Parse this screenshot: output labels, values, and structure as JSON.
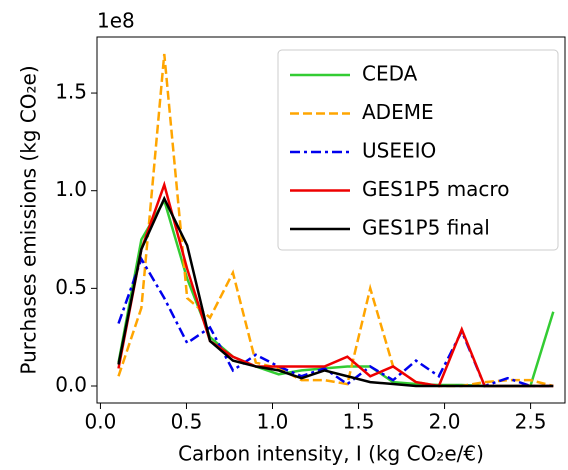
{
  "chart_data": {
    "type": "line",
    "y_label": "Purchases emissions (kg CO₂e)",
    "x_label": "Carbon intensity, I (kg CO₂e/€)",
    "y_offset_label": "1e8",
    "x": [
      0.105,
      0.238,
      0.371,
      0.504,
      0.637,
      0.77,
      0.903,
      1.036,
      1.169,
      1.302,
      1.435,
      1.568,
      1.701,
      1.834,
      1.967,
      2.1,
      2.233,
      2.366,
      2.499,
      2.632
    ],
    "series": [
      {
        "name": "CEDA",
        "color": "#33cc33",
        "dash": "solid",
        "values": [
          0.12,
          0.75,
          0.95,
          0.55,
          0.25,
          0.15,
          0.1,
          0.06,
          0.08,
          0.09,
          0.1,
          0.1,
          0.02,
          0.01,
          0.005,
          0.005,
          0,
          0,
          0,
          0.38
        ]
      },
      {
        "name": "ADEME",
        "color": "#ffa500",
        "dash": "dashed",
        "values": [
          0.05,
          0.4,
          1.7,
          0.45,
          0.35,
          0.58,
          0.12,
          0.09,
          0.03,
          0.03,
          0.01,
          0.5,
          0.1,
          0.02,
          0,
          0,
          0.02,
          0.03,
          0.03,
          0
        ]
      },
      {
        "name": "USEEIO",
        "color": "#0000ee",
        "dash": "dashdot",
        "values": [
          0.32,
          0.65,
          0.45,
          0.22,
          0.3,
          0.08,
          0.16,
          0.1,
          0.05,
          0.09,
          0.01,
          0.1,
          0.03,
          0.13,
          0.05,
          0.28,
          0,
          0.04,
          0,
          0
        ]
      },
      {
        "name": "GES1P5 macro",
        "color": "#ee0000",
        "dash": "solid",
        "values": [
          0.09,
          0.7,
          1.03,
          0.6,
          0.23,
          0.15,
          0.1,
          0.1,
          0.1,
          0.1,
          0.15,
          0.05,
          0.1,
          0.02,
          0,
          0.29,
          0,
          0,
          0,
          0
        ]
      },
      {
        "name": "GES1P5 final",
        "color": "#000000",
        "dash": "solid",
        "values": [
          0.11,
          0.7,
          0.96,
          0.72,
          0.23,
          0.13,
          0.1,
          0.08,
          0.04,
          0.08,
          0.05,
          0.02,
          0.01,
          0,
          0,
          0,
          0,
          0,
          0,
          0
        ]
      }
    ],
    "xlim": [
      -0.02,
      2.7
    ],
    "ylim": [
      -0.087,
      1.787
    ],
    "xticks": [
      {
        "value": 0,
        "label": "0.0"
      },
      0.5,
      {
        "value": 1,
        "label": "1.0"
      },
      1.5,
      {
        "value": 2,
        "label": "2.0"
      },
      2.5
    ],
    "yticks": [
      {
        "value": 0,
        "label": "0.0"
      },
      0.5,
      {
        "value": 1,
        "label": "1.0"
      },
      1.5
    ],
    "grid": false,
    "legend": "upper right"
  }
}
